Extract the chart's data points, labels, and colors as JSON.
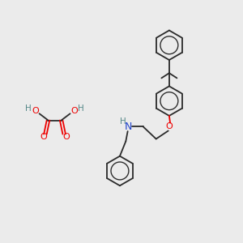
{
  "background_color": "#ebebeb",
  "bond_color": "#2a2a2a",
  "oxygen_color": "#ee0000",
  "nitrogen_color": "#2244cc",
  "h_color": "#558888",
  "lw": 1.3,
  "figsize": [
    3.0,
    3.0
  ],
  "dpi": 100,
  "xlim": [
    0,
    10
  ],
  "ylim": [
    0,
    10
  ]
}
